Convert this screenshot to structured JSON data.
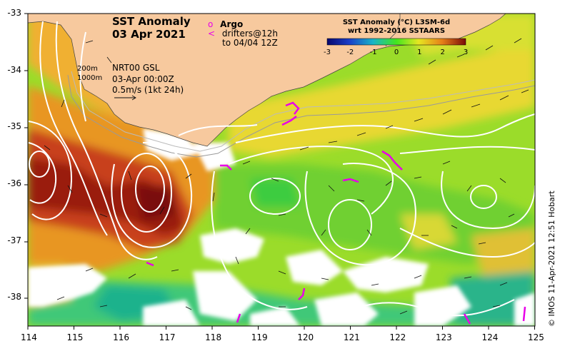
{
  "title": {
    "line1": "SST Anomaly",
    "line2": "03 Apr 2021"
  },
  "legend": {
    "argo_symbol": "o",
    "argo_label": "Argo",
    "drifter_symbol": "<",
    "drifter_line1": "drifters@12h",
    "drifter_line2": "to 04/04 12Z"
  },
  "depth_labels": {
    "d200": "200m",
    "d1000": "1000m"
  },
  "info": {
    "line1": "NRT00 GSL",
    "line2": "03-Apr 00:00Z",
    "line3": "0.5m/s (1kt 24h)"
  },
  "colorbar": {
    "title_line1": "SST Anomaly (°C) L3SM-6d",
    "title_line2": "wrt 1992-2016 SSTAARS",
    "ticks": [
      "-3",
      "-2",
      "-1",
      "0",
      "1",
      "2",
      "3"
    ],
    "min": -3,
    "max": 3
  },
  "x_axis": {
    "ticks": [
      "114",
      "115",
      "116",
      "117",
      "118",
      "119",
      "120",
      "121",
      "122",
      "123",
      "124",
      "125"
    ]
  },
  "y_axis": {
    "ticks": [
      "-33",
      "-34",
      "-35",
      "-36",
      "-37",
      "-38"
    ]
  },
  "map_extent": {
    "lon_min": 114,
    "lon_max": 125,
    "lat_min": -38.5,
    "lat_max": -33
  },
  "credit": "© IMOS 11-Apr-2021 12:51 Hobart",
  "colors": {
    "land": "#f7c99e",
    "contour": "#ffffff",
    "argo": "#e800e8",
    "no_data": "#ffffff"
  }
}
